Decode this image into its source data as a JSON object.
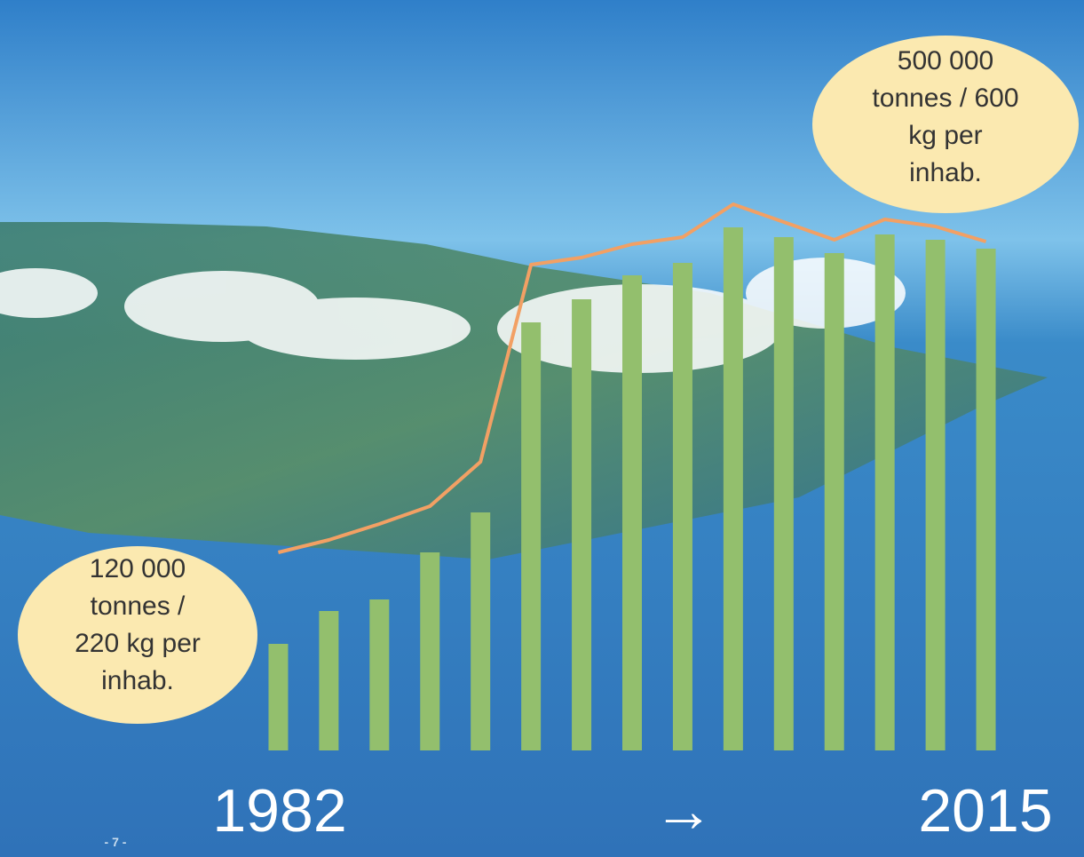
{
  "chart_data": {
    "type": "bar",
    "categories": [
      null,
      null,
      null,
      null,
      null,
      null,
      null,
      null,
      null,
      null,
      null,
      null,
      null,
      null,
      null
    ],
    "series": [
      {
        "type": "bar",
        "color": "#93bf6d",
        "values": [
          120,
          157,
          170,
          223,
          268,
          482,
          508,
          535,
          549,
          589,
          578,
          560,
          581,
          575,
          565
        ]
      },
      {
        "type": "line",
        "color": "#f2a064",
        "values": [
          223,
          237,
          255,
          275,
          325,
          547,
          555,
          570,
          578,
          615,
          595,
          575,
          598,
          590,
          573
        ]
      }
    ],
    "ylim": [
      0,
      650
    ],
    "start_label": "1982",
    "end_label": "2015",
    "arrow": "→",
    "annotations": [
      "120 000",
      "tonnes /",
      "220 kg per",
      "inhab.",
      "500 000",
      "tonnes / 600",
      "kg per",
      "inhab."
    ],
    "page_number": "- 7 -"
  }
}
